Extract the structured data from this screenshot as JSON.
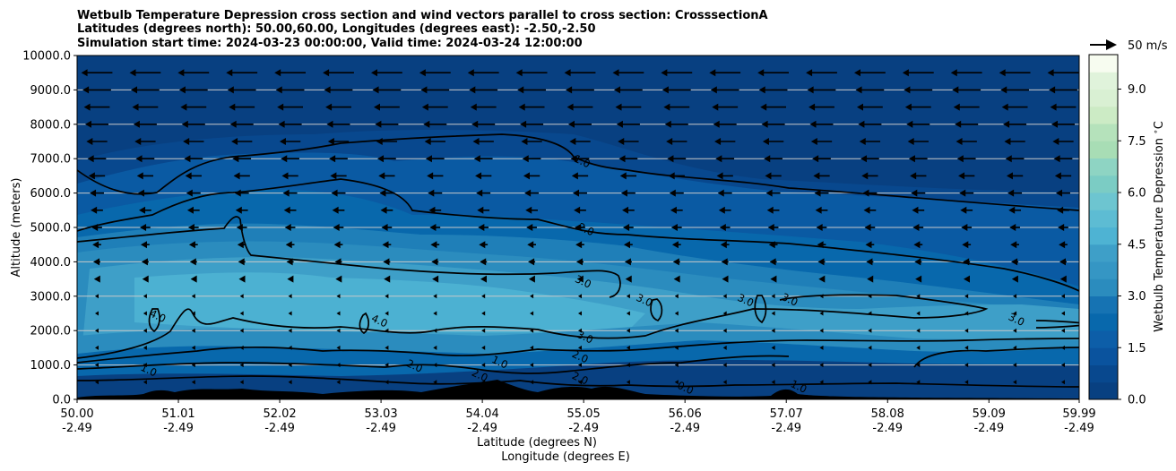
{
  "chart_data": {
    "type": "heatmap",
    "title_lines": [
      "Wetbulb Temperature Depression cross section and wind vectors parallel to cross section: CrosssectionA",
      "Latitudes (degrees north): 50.00,60.00, Longitudes (degrees east): -2.50,-2.50",
      "Simulation start time: 2024-03-23 00:00:00, Valid time: 2024-03-24 12:00:00"
    ],
    "xlabel_lines": [
      "Latitude (degrees N)",
      "Longitude (degrees E)"
    ],
    "ylabel": "Altitude (meters)",
    "x_ticks": [
      {
        "lat": "50.00",
        "lon": "-2.49"
      },
      {
        "lat": "51.01",
        "lon": "-2.49"
      },
      {
        "lat": "52.02",
        "lon": "-2.49"
      },
      {
        "lat": "53.03",
        "lon": "-2.49"
      },
      {
        "lat": "54.04",
        "lon": "-2.49"
      },
      {
        "lat": "55.05",
        "lon": "-2.49"
      },
      {
        "lat": "56.06",
        "lon": "-2.49"
      },
      {
        "lat": "57.07",
        "lon": "-2.49"
      },
      {
        "lat": "58.08",
        "lon": "-2.49"
      },
      {
        "lat": "59.09",
        "lon": "-2.49"
      },
      {
        "lat": "59.99",
        "lon": "-2.49"
      }
    ],
    "x_tick_values": [
      50.0,
      51.01,
      52.02,
      53.03,
      54.04,
      55.05,
      56.06,
      57.07,
      58.08,
      59.09,
      59.99
    ],
    "xlim": [
      50.0,
      59.99
    ],
    "y_ticks": [
      "0.0",
      "1000.0",
      "2000.0",
      "3000.0",
      "4000.0",
      "5000.0",
      "6000.0",
      "7000.0",
      "8000.0",
      "9000.0",
      "10000.0"
    ],
    "ylim": [
      0,
      10000
    ],
    "grid": "horizontal",
    "colorbar": {
      "label": "Wetbulb Temperature Depression $^\\circ$C",
      "ticks": [
        "0.0",
        "1.5",
        "3.0",
        "4.5",
        "6.0",
        "7.5",
        "9.0"
      ],
      "range": [
        0,
        10
      ],
      "levels": 20,
      "colors": [
        "#084081",
        "#08488e",
        "#0a539e",
        "#0d5ea8",
        "#0868ac",
        "#1673b3",
        "#2b8cbe",
        "#3596c4",
        "#3e9fc8",
        "#4eb3d3",
        "#5dbcd3",
        "#6dc5d0",
        "#7bccc4",
        "#8ed4c3",
        "#a8ddb5",
        "#b5e2bb",
        "#ccebc5",
        "#d9f0d3",
        "#e0f3db",
        "#f7fcf0"
      ]
    },
    "wind_reference": "50 m/s",
    "contour_labels": [
      {
        "text": "1.0",
        "lat": 55.02,
        "alt": 6830
      },
      {
        "text": "2.0",
        "lat": 55.06,
        "alt": 4850
      },
      {
        "text": "3.0",
        "lat": 55.03,
        "alt": 3330
      },
      {
        "text": "3.0",
        "lat": 55.05,
        "alt": 1720
      },
      {
        "text": "3.0",
        "lat": 55.64,
        "alt": 2790
      },
      {
        "text": "3.0",
        "lat": 57.09,
        "alt": 2810
      },
      {
        "text": "3.0",
        "lat": 56.65,
        "alt": 2790
      },
      {
        "text": "3.0",
        "lat": 59.35,
        "alt": 2230
      },
      {
        "text": "4.0",
        "lat": 50.79,
        "alt": 2330
      },
      {
        "text": "4.0",
        "lat": 53.0,
        "alt": 2190
      },
      {
        "text": "2.0",
        "lat": 54.0,
        "alt": 610
      },
      {
        "text": "2.0",
        "lat": 55.0,
        "alt": 520
      },
      {
        "text": "2.0",
        "lat": 55.0,
        "alt": 1150
      },
      {
        "text": "2.0",
        "lat": 53.35,
        "alt": 880
      },
      {
        "text": "1.0",
        "lat": 54.2,
        "alt": 990
      },
      {
        "text": "1.0",
        "lat": 50.7,
        "alt": 760
      },
      {
        "text": "0.0",
        "lat": 56.05,
        "alt": 240
      },
      {
        "text": "1.0",
        "lat": 57.18,
        "alt": 280
      }
    ]
  }
}
